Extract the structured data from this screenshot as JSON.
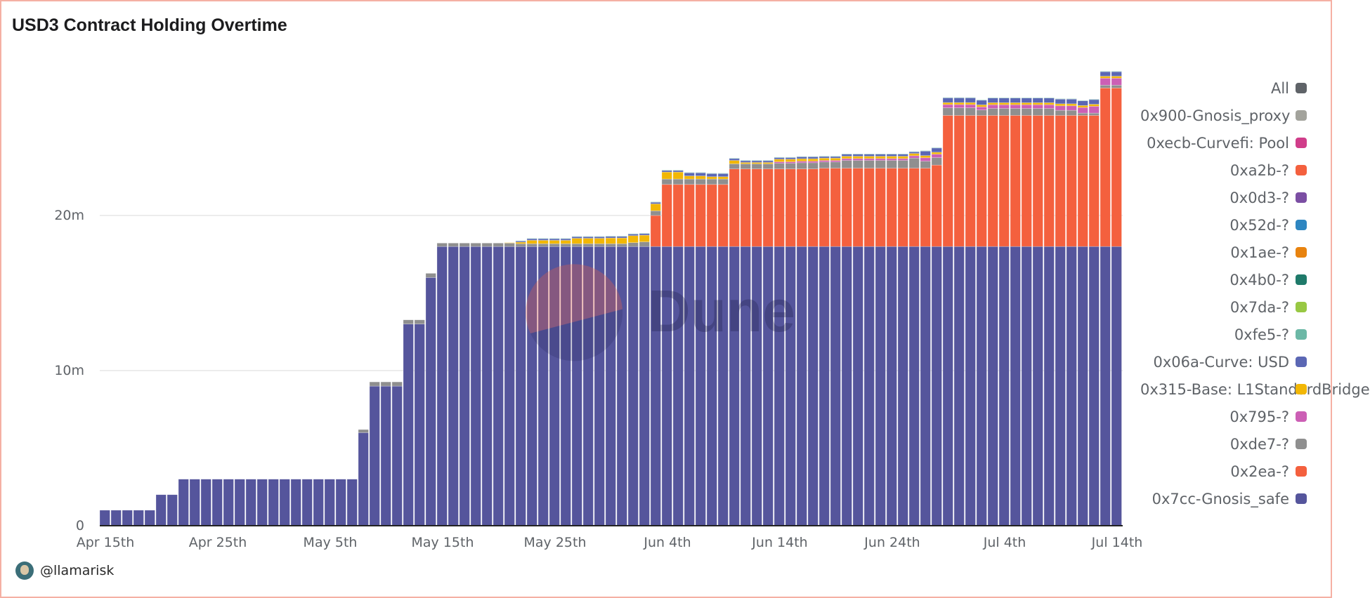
{
  "chart_data": {
    "type": "bar",
    "stacked": true,
    "title": "USD3 Contract Holding Overtime",
    "xlabel": "",
    "ylabel": "",
    "x_range": [
      "Apr 15",
      "Jul 14"
    ],
    "x_tick_labels": [
      "Apr 15th",
      "Apr 25th",
      "May 5th",
      "May 15th",
      "May 25th",
      "Jun 4th",
      "Jun 14th",
      "Jun 24th",
      "Jul 4th",
      "Jul 14th"
    ],
    "y_tick_labels": [
      "0",
      "10m",
      "20m"
    ],
    "ylim": [
      0,
      30
    ],
    "unit": "millions",
    "grid": true,
    "legend_position": "right",
    "series": [
      {
        "name": "0x7cc-Gnosis_safe",
        "color": "#55559c",
        "values": [
          1,
          1,
          1,
          1,
          1,
          2,
          2,
          3,
          3,
          3,
          3,
          3,
          3,
          3,
          3,
          3,
          3,
          3,
          3,
          3,
          3,
          3,
          3,
          6,
          9,
          9,
          9,
          13,
          13,
          16,
          18,
          18,
          18,
          18,
          18,
          18,
          18,
          18,
          18,
          18,
          18,
          18,
          18,
          18,
          18,
          18,
          18,
          18,
          18,
          18,
          18,
          18,
          18,
          18,
          18,
          18,
          18,
          18,
          18,
          18,
          18,
          18,
          18,
          18,
          18,
          18,
          18,
          18,
          18,
          18,
          18,
          18,
          18,
          18,
          18,
          18,
          18,
          18,
          18,
          18,
          18,
          18,
          18,
          18,
          18,
          18,
          18,
          18,
          18,
          18,
          18
        ]
      },
      {
        "name": "0x2ea-?",
        "color": "#f4603e",
        "values": [
          0,
          0,
          0,
          0,
          0,
          0,
          0,
          0,
          0,
          0,
          0,
          0,
          0,
          0,
          0,
          0,
          0,
          0,
          0,
          0,
          0,
          0,
          0,
          0,
          0,
          0,
          0,
          0,
          0,
          0,
          0,
          0,
          0,
          0,
          0,
          0,
          0,
          0,
          0,
          0,
          0,
          0,
          0,
          0,
          0,
          0,
          0,
          0,
          0,
          2,
          4,
          4,
          4,
          4,
          4,
          4,
          5,
          5,
          5,
          5,
          5,
          5,
          5,
          5,
          5.05,
          5.05,
          5.05,
          5.05,
          5.05,
          5.05,
          5.05,
          5.05,
          5.05,
          5.05,
          5.25,
          8.45,
          8.45,
          8.45,
          8.45,
          8.45,
          8.45,
          8.45,
          8.45,
          8.45,
          8.45,
          8.45,
          8.45,
          8.45,
          8.45,
          10.22,
          10.22
        ]
      },
      {
        "name": "0xde7-?",
        "color": "#8f8f8f",
        "values": [
          0,
          0,
          0,
          0,
          0,
          0,
          0,
          0,
          0,
          0,
          0,
          0,
          0,
          0,
          0,
          0,
          0,
          0,
          0,
          0,
          0,
          0,
          0,
          0.2,
          0.27,
          0.27,
          0.27,
          0.27,
          0.27,
          0.27,
          0.22,
          0.22,
          0.22,
          0.22,
          0.22,
          0.22,
          0.22,
          0.18,
          0.18,
          0.18,
          0.18,
          0.18,
          0.18,
          0.18,
          0.18,
          0.18,
          0.18,
          0.25,
          0.3,
          0.3,
          0.35,
          0.35,
          0.35,
          0.35,
          0.35,
          0.35,
          0.33,
          0.33,
          0.33,
          0.33,
          0.37,
          0.37,
          0.4,
          0.4,
          0.4,
          0.4,
          0.5,
          0.5,
          0.5,
          0.5,
          0.5,
          0.5,
          0.65,
          0.45,
          0.48,
          0.49,
          0.49,
          0.49,
          0.35,
          0.45,
          0.45,
          0.45,
          0.45,
          0.45,
          0.45,
          0.33,
          0.33,
          0.15,
          0.15,
          0.18,
          0.18
        ]
      },
      {
        "name": "0x795-?",
        "color": "#cc5fb5",
        "values": [
          0,
          0,
          0,
          0,
          0,
          0,
          0,
          0,
          0,
          0,
          0,
          0,
          0,
          0,
          0,
          0,
          0,
          0,
          0,
          0,
          0,
          0,
          0,
          0,
          0,
          0,
          0,
          0,
          0,
          0,
          0,
          0,
          0,
          0,
          0,
          0,
          0,
          0,
          0,
          0,
          0,
          0,
          0,
          0,
          0,
          0,
          0,
          0,
          0,
          0,
          0,
          0,
          0,
          0,
          0,
          0,
          0,
          0,
          0,
          0,
          0.09,
          0.09,
          0.1,
          0.1,
          0.1,
          0.1,
          0.12,
          0.12,
          0.12,
          0.12,
          0.12,
          0.12,
          0.15,
          0.22,
          0.22,
          0.21,
          0.21,
          0.21,
          0.2,
          0.24,
          0.24,
          0.24,
          0.24,
          0.24,
          0.24,
          0.29,
          0.29,
          0.36,
          0.44,
          0.45,
          0.45
        ]
      },
      {
        "name": "0x315-Base: L1StandardBridge",
        "color": "#f2b705",
        "values": [
          0,
          0,
          0,
          0,
          0,
          0,
          0,
          0,
          0,
          0,
          0,
          0,
          0,
          0,
          0,
          0,
          0,
          0,
          0,
          0,
          0,
          0,
          0,
          0,
          0,
          0,
          0,
          0,
          0,
          0,
          0,
          0,
          0,
          0,
          0,
          0,
          0.03,
          0.1,
          0.22,
          0.22,
          0.22,
          0.22,
          0.35,
          0.35,
          0.35,
          0.37,
          0.37,
          0.45,
          0.43,
          0.45,
          0.45,
          0.45,
          0.2,
          0.2,
          0.15,
          0.15,
          0.22,
          0.09,
          0.09,
          0.09,
          0.17,
          0.17,
          0.16,
          0.16,
          0.15,
          0.15,
          0.15,
          0.15,
          0.15,
          0.15,
          0.15,
          0.15,
          0.15,
          0.14,
          0.13,
          0.13,
          0.13,
          0.13,
          0.13,
          0.13,
          0.13,
          0.13,
          0.13,
          0.13,
          0.13,
          0.13,
          0.13,
          0.13,
          0.13,
          0.13,
          0.13
        ]
      },
      {
        "name": "0x06a-Curve: USD",
        "color": "#5b67b4",
        "values": [
          0,
          0,
          0,
          0,
          0,
          0,
          0,
          0,
          0,
          0,
          0,
          0,
          0,
          0,
          0,
          0,
          0,
          0,
          0,
          0,
          0,
          0,
          0,
          0,
          0,
          0,
          0,
          0,
          0,
          0,
          0,
          0,
          0,
          0,
          0,
          0,
          0,
          0.07,
          0.1,
          0.1,
          0.1,
          0.1,
          0.1,
          0.1,
          0.1,
          0.1,
          0.1,
          0.1,
          0.1,
          0.1,
          0.1,
          0.1,
          0.2,
          0.2,
          0.2,
          0.2,
          0.12,
          0.11,
          0.11,
          0.11,
          0.1,
          0.1,
          0.12,
          0.12,
          0.1,
          0.1,
          0.13,
          0.13,
          0.13,
          0.13,
          0.13,
          0.13,
          0.1,
          0.29,
          0.27,
          0.3,
          0.3,
          0.3,
          0.3,
          0.3,
          0.3,
          0.3,
          0.3,
          0.3,
          0.3,
          0.3,
          0.3,
          0.3,
          0.3,
          0.29,
          0.29
        ]
      },
      {
        "name": "0xfe5-?",
        "color": "#6cb8a6",
        "values": [
          0,
          0,
          0,
          0,
          0,
          0,
          0,
          0,
          0,
          0,
          0,
          0,
          0,
          0,
          0,
          0,
          0,
          0,
          0,
          0,
          0,
          0,
          0,
          0,
          0,
          0,
          0,
          0,
          0,
          0,
          0,
          0,
          0,
          0,
          0,
          0,
          0,
          0.03,
          0.03,
          0.03,
          0.03,
          0.03,
          0.03,
          0.03,
          0.03,
          0.03,
          0.03,
          0.03,
          0.03,
          0.03,
          0.03,
          0.03,
          0.03,
          0.03,
          0.03,
          0.03,
          0.03,
          0.03,
          0.03,
          0.03,
          0.03,
          0.03,
          0.03,
          0.03,
          0.03,
          0.03,
          0.03,
          0.03,
          0.03,
          0.03,
          0.03,
          0.03,
          0.03,
          0.03,
          0.03,
          0.03,
          0.03,
          0.03,
          0.03,
          0.03,
          0.03,
          0.03,
          0.03,
          0.03,
          0.03,
          0.03,
          0.03,
          0.03,
          0.03,
          0.03,
          0.03
        ]
      }
    ]
  },
  "legend": [
    {
      "label": "All",
      "color": "#5f6368"
    },
    {
      "label": "0x900-Gnosis_proxy",
      "color": "#a3a39c"
    },
    {
      "label": "0xecb-Curvefi: Pool",
      "color": "#d03d8a"
    },
    {
      "label": "0xa2b-?",
      "color": "#f4603e"
    },
    {
      "label": "0x0d3-?",
      "color": "#7b4ea3"
    },
    {
      "label": "0x52d-?",
      "color": "#2e86c1"
    },
    {
      "label": "0x1ae-?",
      "color": "#e8830f"
    },
    {
      "label": "0x4b0-?",
      "color": "#1f7a6a"
    },
    {
      "label": "0x7da-?",
      "color": "#98c843"
    },
    {
      "label": "0xfe5-?",
      "color": "#6cb8a6"
    },
    {
      "label": "0x06a-Curve: USD",
      "color": "#5b67b4"
    },
    {
      "label": "0x315-Base: L1StandardBridge",
      "color": "#f2b705"
    },
    {
      "label": "0x795-?",
      "color": "#cc5fb5"
    },
    {
      "label": "0xde7-?",
      "color": "#8f8f8f"
    },
    {
      "label": "0x2ea-?",
      "color": "#f4603e"
    },
    {
      "label": "0x7cc-Gnosis_safe",
      "color": "#55559c"
    }
  ],
  "watermark": "Dune",
  "footer": {
    "handle": "@llamarisk"
  }
}
